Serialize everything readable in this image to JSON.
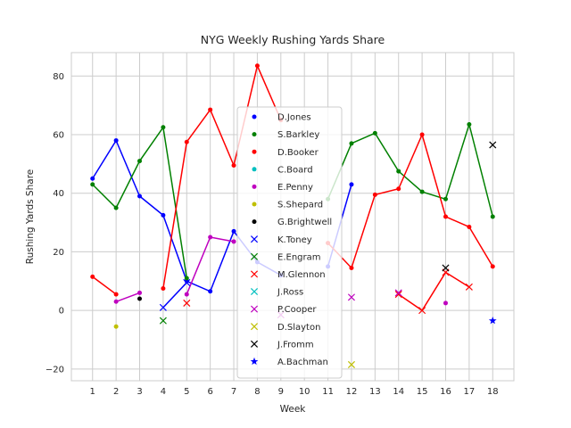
{
  "chart_data": {
    "type": "line",
    "title": "NYG Weekly Rushing Yards Share",
    "xlabel": "Week",
    "ylabel": "Rushing Yards Share",
    "xlim": [
      0.1,
      18.9
    ],
    "ylim": [
      -24,
      88
    ],
    "x_ticks": [
      1,
      2,
      3,
      4,
      5,
      6,
      7,
      8,
      9,
      10,
      11,
      12,
      13,
      14,
      15,
      16,
      17,
      18
    ],
    "y_ticks": [
      -20,
      0,
      20,
      40,
      60,
      80
    ],
    "grid": true,
    "legend_position": "center",
    "series": [
      {
        "name": "D.Jones",
        "color": "#0000ff",
        "marker": "dot",
        "points": [
          [
            1,
            45
          ],
          [
            2,
            58
          ],
          [
            3,
            39
          ],
          [
            4,
            32.5
          ],
          [
            5,
            10
          ],
          [
            6,
            6.5
          ],
          [
            7,
            27
          ],
          [
            8,
            16.5
          ],
          [
            9,
            12
          ],
          [
            11,
            15
          ],
          [
            12,
            43
          ]
        ]
      },
      {
        "name": "S.Barkley",
        "color": "#008000",
        "marker": "dot",
        "points": [
          [
            1,
            43
          ],
          [
            2,
            35
          ],
          [
            3,
            51
          ],
          [
            4,
            62.5
          ],
          [
            5,
            11
          ],
          [
            11,
            38
          ],
          [
            12,
            57
          ],
          [
            13,
            60.5
          ],
          [
            14,
            47.5
          ],
          [
            15,
            40.5
          ],
          [
            16,
            38
          ],
          [
            17,
            63.5
          ],
          [
            18,
            32
          ]
        ]
      },
      {
        "name": "D.Booker",
        "color": "#ff0000",
        "marker": "dot",
        "points": [
          [
            1,
            11.5
          ],
          [
            2,
            5.5
          ],
          [
            4,
            7.5
          ],
          [
            5,
            57.5
          ],
          [
            6,
            68.5
          ],
          [
            7,
            49.5
          ],
          [
            8,
            83.5
          ],
          [
            9,
            65
          ],
          [
            11,
            23
          ],
          [
            12,
            14.5
          ],
          [
            13,
            39.5
          ],
          [
            14,
            41.5
          ],
          [
            15,
            60
          ],
          [
            16,
            32
          ],
          [
            17,
            28.5
          ],
          [
            18,
            15
          ]
        ]
      },
      {
        "name": "C.Board",
        "color": "#00bfbf",
        "marker": "dot",
        "points": []
      },
      {
        "name": "E.Penny",
        "color": "#bf00bf",
        "marker": "dot",
        "points": [
          [
            2,
            3
          ],
          [
            3,
            6
          ],
          [
            5,
            5.5
          ],
          [
            6,
            25
          ],
          [
            7,
            23.5
          ],
          [
            16,
            2.5
          ]
        ]
      },
      {
        "name": "S.Shepard",
        "color": "#bfbf00",
        "marker": "dot",
        "points": [
          [
            2,
            -5.5
          ]
        ]
      },
      {
        "name": "G.Brightwell",
        "color": "#000000",
        "marker": "dot",
        "points": [
          [
            3,
            4
          ]
        ]
      },
      {
        "name": "K.Toney",
        "color": "#0000ff",
        "marker": "x",
        "points": [
          [
            4,
            1
          ],
          [
            5,
            9.5
          ]
        ]
      },
      {
        "name": "E.Engram",
        "color": "#008000",
        "marker": "x",
        "points": [
          [
            4,
            -3.5
          ]
        ]
      },
      {
        "name": "M.Glennon",
        "color": "#ff0000",
        "marker": "x",
        "points": [
          [
            5,
            2.5
          ],
          [
            14,
            5.5
          ],
          [
            15,
            0
          ],
          [
            16,
            13
          ],
          [
            17,
            8
          ]
        ]
      },
      {
        "name": "J.Ross",
        "color": "#00bfbf",
        "marker": "x",
        "points": []
      },
      {
        "name": "P.Cooper",
        "color": "#bf00bf",
        "marker": "x",
        "points": [
          [
            9,
            -1.5
          ],
          [
            12,
            4.5
          ],
          [
            14,
            6
          ]
        ]
      },
      {
        "name": "D.Slayton",
        "color": "#bfbf00",
        "marker": "x",
        "points": [
          [
            12,
            -18.5
          ]
        ]
      },
      {
        "name": "J.Fromm",
        "color": "#000000",
        "marker": "x",
        "points": [
          [
            16,
            14.5
          ],
          [
            18,
            56.5
          ]
        ]
      },
      {
        "name": "A.Bachman",
        "color": "#0000ff",
        "marker": "star",
        "points": [
          [
            18,
            -3.5
          ]
        ]
      }
    ]
  }
}
